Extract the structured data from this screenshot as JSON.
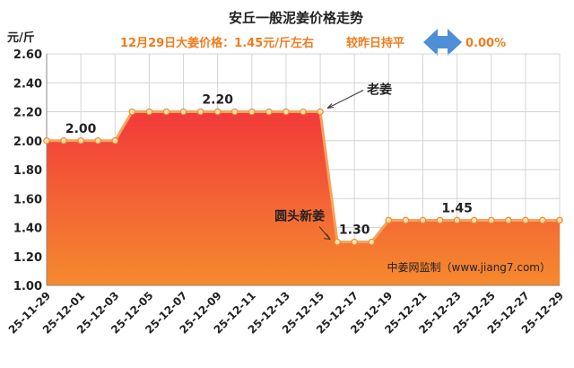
{
  "chart_data": {
    "type": "area",
    "title": "安丘一般泥姜价格走势",
    "subtitle": "12月29日大姜价格：1.45元/斤左右",
    "change_label": "较昨日持平",
    "change_value": "0.00%",
    "ylabel": "元/斤",
    "ylim": [
      1.0,
      2.6
    ],
    "yticks": [
      "1.00",
      "1.20",
      "1.40",
      "1.60",
      "1.80",
      "2.00",
      "2.20",
      "2.40",
      "2.60"
    ],
    "xtick_labels": [
      "25-11-29",
      "25-12-01",
      "25-12-03",
      "25-12-05",
      "25-12-07",
      "25-12-09",
      "25-12-11",
      "25-12-13",
      "25-12-15",
      "25-12-17",
      "25-12-19",
      "25-12-21",
      "25-12-23",
      "25-12-25",
      "25-12-27",
      "25-12-29"
    ],
    "dates": [
      "25-11-29",
      "25-11-30",
      "25-12-01",
      "25-12-02",
      "25-12-03",
      "25-12-04",
      "25-12-05",
      "25-12-06",
      "25-12-07",
      "25-12-08",
      "25-12-09",
      "25-12-10",
      "25-12-11",
      "25-12-12",
      "25-12-13",
      "25-12-14",
      "25-12-15",
      "25-12-16",
      "25-12-17",
      "25-12-18",
      "25-12-19",
      "25-12-20",
      "25-12-21",
      "25-12-22",
      "25-12-23",
      "25-12-24",
      "25-12-25",
      "25-12-26",
      "25-12-27",
      "25-12-28",
      "25-12-29"
    ],
    "values": [
      2.0,
      2.0,
      2.0,
      2.0,
      2.0,
      2.2,
      2.2,
      2.2,
      2.2,
      2.2,
      2.2,
      2.2,
      2.2,
      2.2,
      2.2,
      2.2,
      2.2,
      1.3,
      1.3,
      1.3,
      1.45,
      1.45,
      1.45,
      1.45,
      1.45,
      1.45,
      1.45,
      1.45,
      1.45,
      1.45,
      1.45
    ],
    "data_labels": [
      {
        "date": "25-12-01",
        "value": 2.0,
        "text": "2.00"
      },
      {
        "date": "25-12-09",
        "value": 2.2,
        "text": "2.20"
      },
      {
        "date": "25-12-17",
        "value": 1.3,
        "text": "1.30"
      },
      {
        "date": "25-12-23",
        "value": 1.45,
        "text": "1.45"
      }
    ],
    "annotations": [
      {
        "text": "老姜",
        "date": "25-12-15",
        "value": 2.2
      },
      {
        "text": "圆头新姜",
        "date": "25-12-16",
        "value": 1.3
      }
    ],
    "source": "中姜网监制（www.jiang7.com）",
    "grid": true,
    "colors": {
      "area_top": "#f23a3a",
      "area_bottom": "#f58a2e",
      "line": "#f5a25d",
      "title": "#222222",
      "subtitle": "#f07c1c",
      "arrow": "#4f8fd8",
      "grid": "#d4d4d4"
    }
  }
}
